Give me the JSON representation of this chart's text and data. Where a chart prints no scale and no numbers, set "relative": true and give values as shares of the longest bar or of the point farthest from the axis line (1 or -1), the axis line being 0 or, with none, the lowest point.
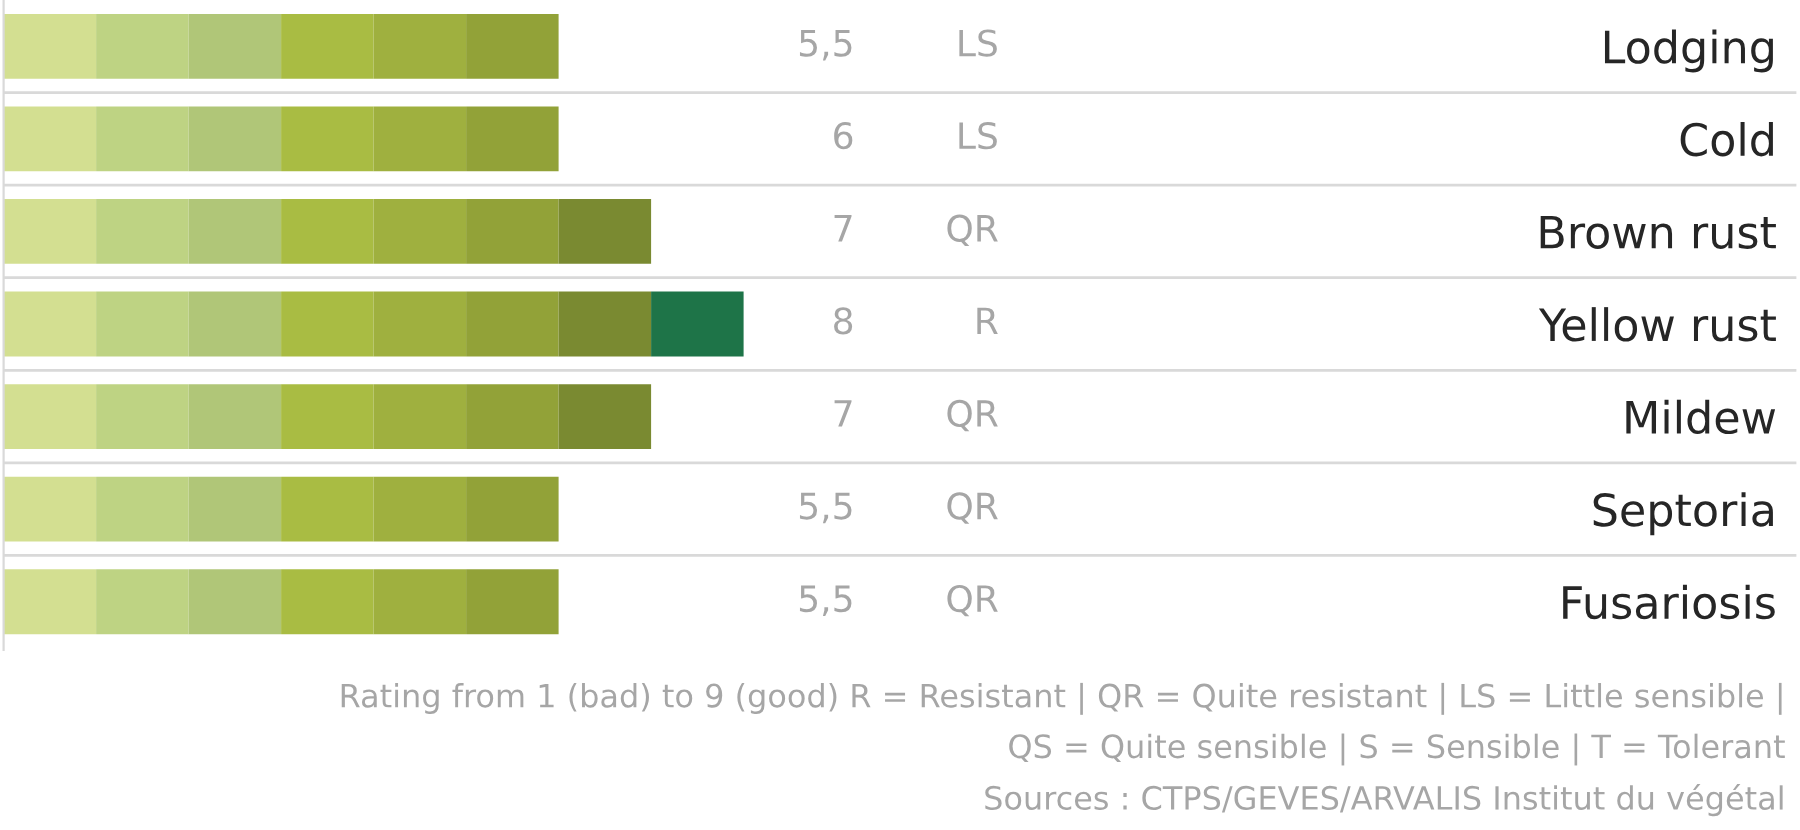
{
  "chart_data": {
    "type": "bar",
    "orientation": "horizontal",
    "stacked": true,
    "relative": true,
    "grid": "y",
    "tick_labels": "y",
    "categories": [
      "Lodging",
      "Cold",
      "Brown rust",
      "Yellow rust",
      "Mildew",
      "Septoria",
      "Fusariosis"
    ],
    "series": [
      {
        "color": "#d3df91",
        "values": [
          0.125,
          0.125,
          0.125,
          0.125,
          0.125,
          0.125,
          0.125
        ]
      },
      {
        "color": "#bed383",
        "values": [
          0.125,
          0.125,
          0.125,
          0.125,
          0.125,
          0.125,
          0.125
        ]
      },
      {
        "color": "#b0c678",
        "values": [
          0.125,
          0.125,
          0.125,
          0.125,
          0.125,
          0.125,
          0.125
        ]
      },
      {
        "color": "#a9bc43",
        "values": [
          0.125,
          0.125,
          0.125,
          0.125,
          0.125,
          0.125,
          0.125
        ]
      },
      {
        "color": "#9fb03f",
        "values": [
          0.125,
          0.125,
          0.125,
          0.125,
          0.125,
          0.125,
          0.125
        ]
      },
      {
        "color": "#92a238",
        "values": [
          0.125,
          0.125,
          0.125,
          0.125,
          0.125,
          0.125,
          0.125
        ]
      },
      {
        "color": "#7a8a31",
        "values": [
          null,
          null,
          0.125,
          0.125,
          0.125,
          null,
          null
        ]
      },
      {
        "color": "#1e7448",
        "values": [
          null,
          null,
          null,
          0.125,
          null,
          null,
          null
        ]
      }
    ],
    "annotations": [
      "5,5",
      "LS",
      "6",
      "LS",
      "7",
      "QR",
      "8",
      "R",
      "7",
      "QR",
      "5,5",
      "QR",
      "5,5",
      "QR",
      "Rating from 1 (bad) to 9 (good) R = Resistant | QR = Quite resistant | LS = Little sensible |",
      "QS = Quite sensible | S = Sensible | T = Tolerant",
      "Sources : CTPS/GEVES/ARVALIS Institut du végétal"
    ]
  }
}
